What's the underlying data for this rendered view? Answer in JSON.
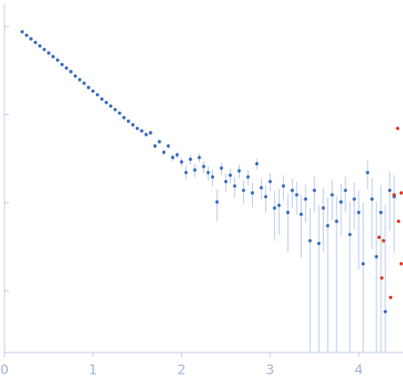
{
  "chart_data": {
    "type": "scatter",
    "x": [
      0.2,
      0.25,
      0.3,
      0.35,
      0.4,
      0.45,
      0.5,
      0.55,
      0.6,
      0.65,
      0.7,
      0.75,
      0.8,
      0.85,
      0.9,
      0.95,
      1.0,
      1.05,
      1.1,
      1.15,
      1.2,
      1.25,
      1.3,
      1.35,
      1.4,
      1.45,
      1.5,
      1.55,
      1.6,
      1.65,
      1.7,
      1.75,
      1.8,
      1.85,
      1.9,
      1.95,
      2.0,
      2.05,
      2.1,
      2.15,
      2.2,
      2.25,
      2.3,
      2.35,
      2.4,
      2.45,
      2.5,
      2.55,
      2.6,
      2.65,
      2.7,
      2.75,
      2.8,
      2.85,
      2.9,
      2.95,
      3.0,
      3.05,
      3.1,
      3.15,
      3.2,
      3.25,
      3.3,
      3.35,
      3.4,
      3.45,
      3.5,
      3.55,
      3.6,
      3.65,
      3.7,
      3.75,
      3.8,
      3.85,
      3.9,
      3.95,
      4.0,
      4.05,
      4.1,
      4.15,
      4.2,
      4.25,
      4.3,
      4.35,
      4.4
    ],
    "series": [
      {
        "color": "#3b6cc0",
        "error_color": "#b3c6e8",
        "values": [
          0.871,
          0.794,
          0.723,
          0.659,
          0.601,
          0.548,
          0.499,
          0.455,
          0.415,
          0.37,
          0.337,
          0.307,
          0.274,
          0.249,
          0.227,
          0.203,
          0.185,
          0.168,
          0.15,
          0.137,
          0.125,
          0.114,
          0.104,
          0.0923,
          0.0841,
          0.0766,
          0.0698,
          0.0652,
          0.0594,
          0.0622,
          0.044,
          0.0493,
          0.0374,
          0.044,
          0.0326,
          0.0349,
          0.029,
          0.022,
          0.0311,
          0.0235,
          0.0326,
          0.0258,
          0.022,
          0.0196,
          0.0102,
          0.0247,
          0.0174,
          0.0205,
          0.0155,
          0.023,
          0.0138,
          0.0196,
          0.0129,
          0.0277,
          0.0148,
          0.0117,
          0.0174,
          0.00871,
          0.00933,
          0.0155,
          0.00775,
          0.0138,
          0.0123,
          0.0074,
          0.011,
          0.0037,
          0.0138,
          0.00345,
          0.00871,
          0.00548,
          0.0123,
          0.00615,
          0.0102,
          0.0138,
          0.00435,
          0.011,
          0.00775,
          0.00203,
          0.022,
          0.011,
          0.00244,
          0.00775,
          0.000581,
          0.0138,
          0.0117
        ],
        "errors": [
          0.01,
          0.01,
          0.01,
          0.008,
          0.008,
          0.007,
          0.006,
          0.006,
          0.005,
          0.005,
          0.005,
          0.004,
          0.004,
          0.004,
          0.004,
          0.004,
          0.004,
          0.004,
          0.004,
          0.003,
          0.003,
          0.003,
          0.003,
          0.003,
          0.003,
          0.003,
          0.003,
          0.003,
          0.003,
          0.003,
          0.003,
          0.003,
          0.003,
          0.003,
          0.003,
          0.003,
          0.003,
          0.004,
          0.004,
          0.004,
          0.004,
          0.004,
          0.004,
          0.004,
          0.004,
          0.004,
          0.004,
          0.004,
          0.004,
          0.004,
          0.004,
          0.004,
          0.004,
          0.004,
          0.004,
          0.004,
          0.004,
          0.005,
          0.005,
          0.005,
          0.005,
          0.005,
          0.005,
          0.005,
          0.005,
          0.005,
          0.006,
          0.006,
          0.006,
          0.006,
          0.006,
          0.006,
          0.006,
          0.006,
          0.006,
          0.006,
          0.006,
          0.008,
          0.008,
          0.008,
          0.008,
          0.008,
          0.009,
          0.009,
          0.009
        ]
      },
      {
        "color": "#e0301e",
        "x": [
          4.23,
          4.26,
          4.28,
          4.36,
          4.4,
          4.44,
          4.45,
          4.48,
          4.48
        ],
        "values": [
          0.00405,
          0.0014,
          0.0037,
          0.000841,
          0.0123,
          0.0698,
          0.00615,
          0.00203,
          0.0129
        ]
      }
    ],
    "xlim": [
      0,
      4.5
    ],
    "xticks": [
      0,
      1,
      2,
      3,
      4
    ],
    "ylim": [
      0.0002,
      1.78
    ],
    "yticks": [
      0.001,
      0.01,
      0.1,
      1
    ],
    "log_y": true
  }
}
